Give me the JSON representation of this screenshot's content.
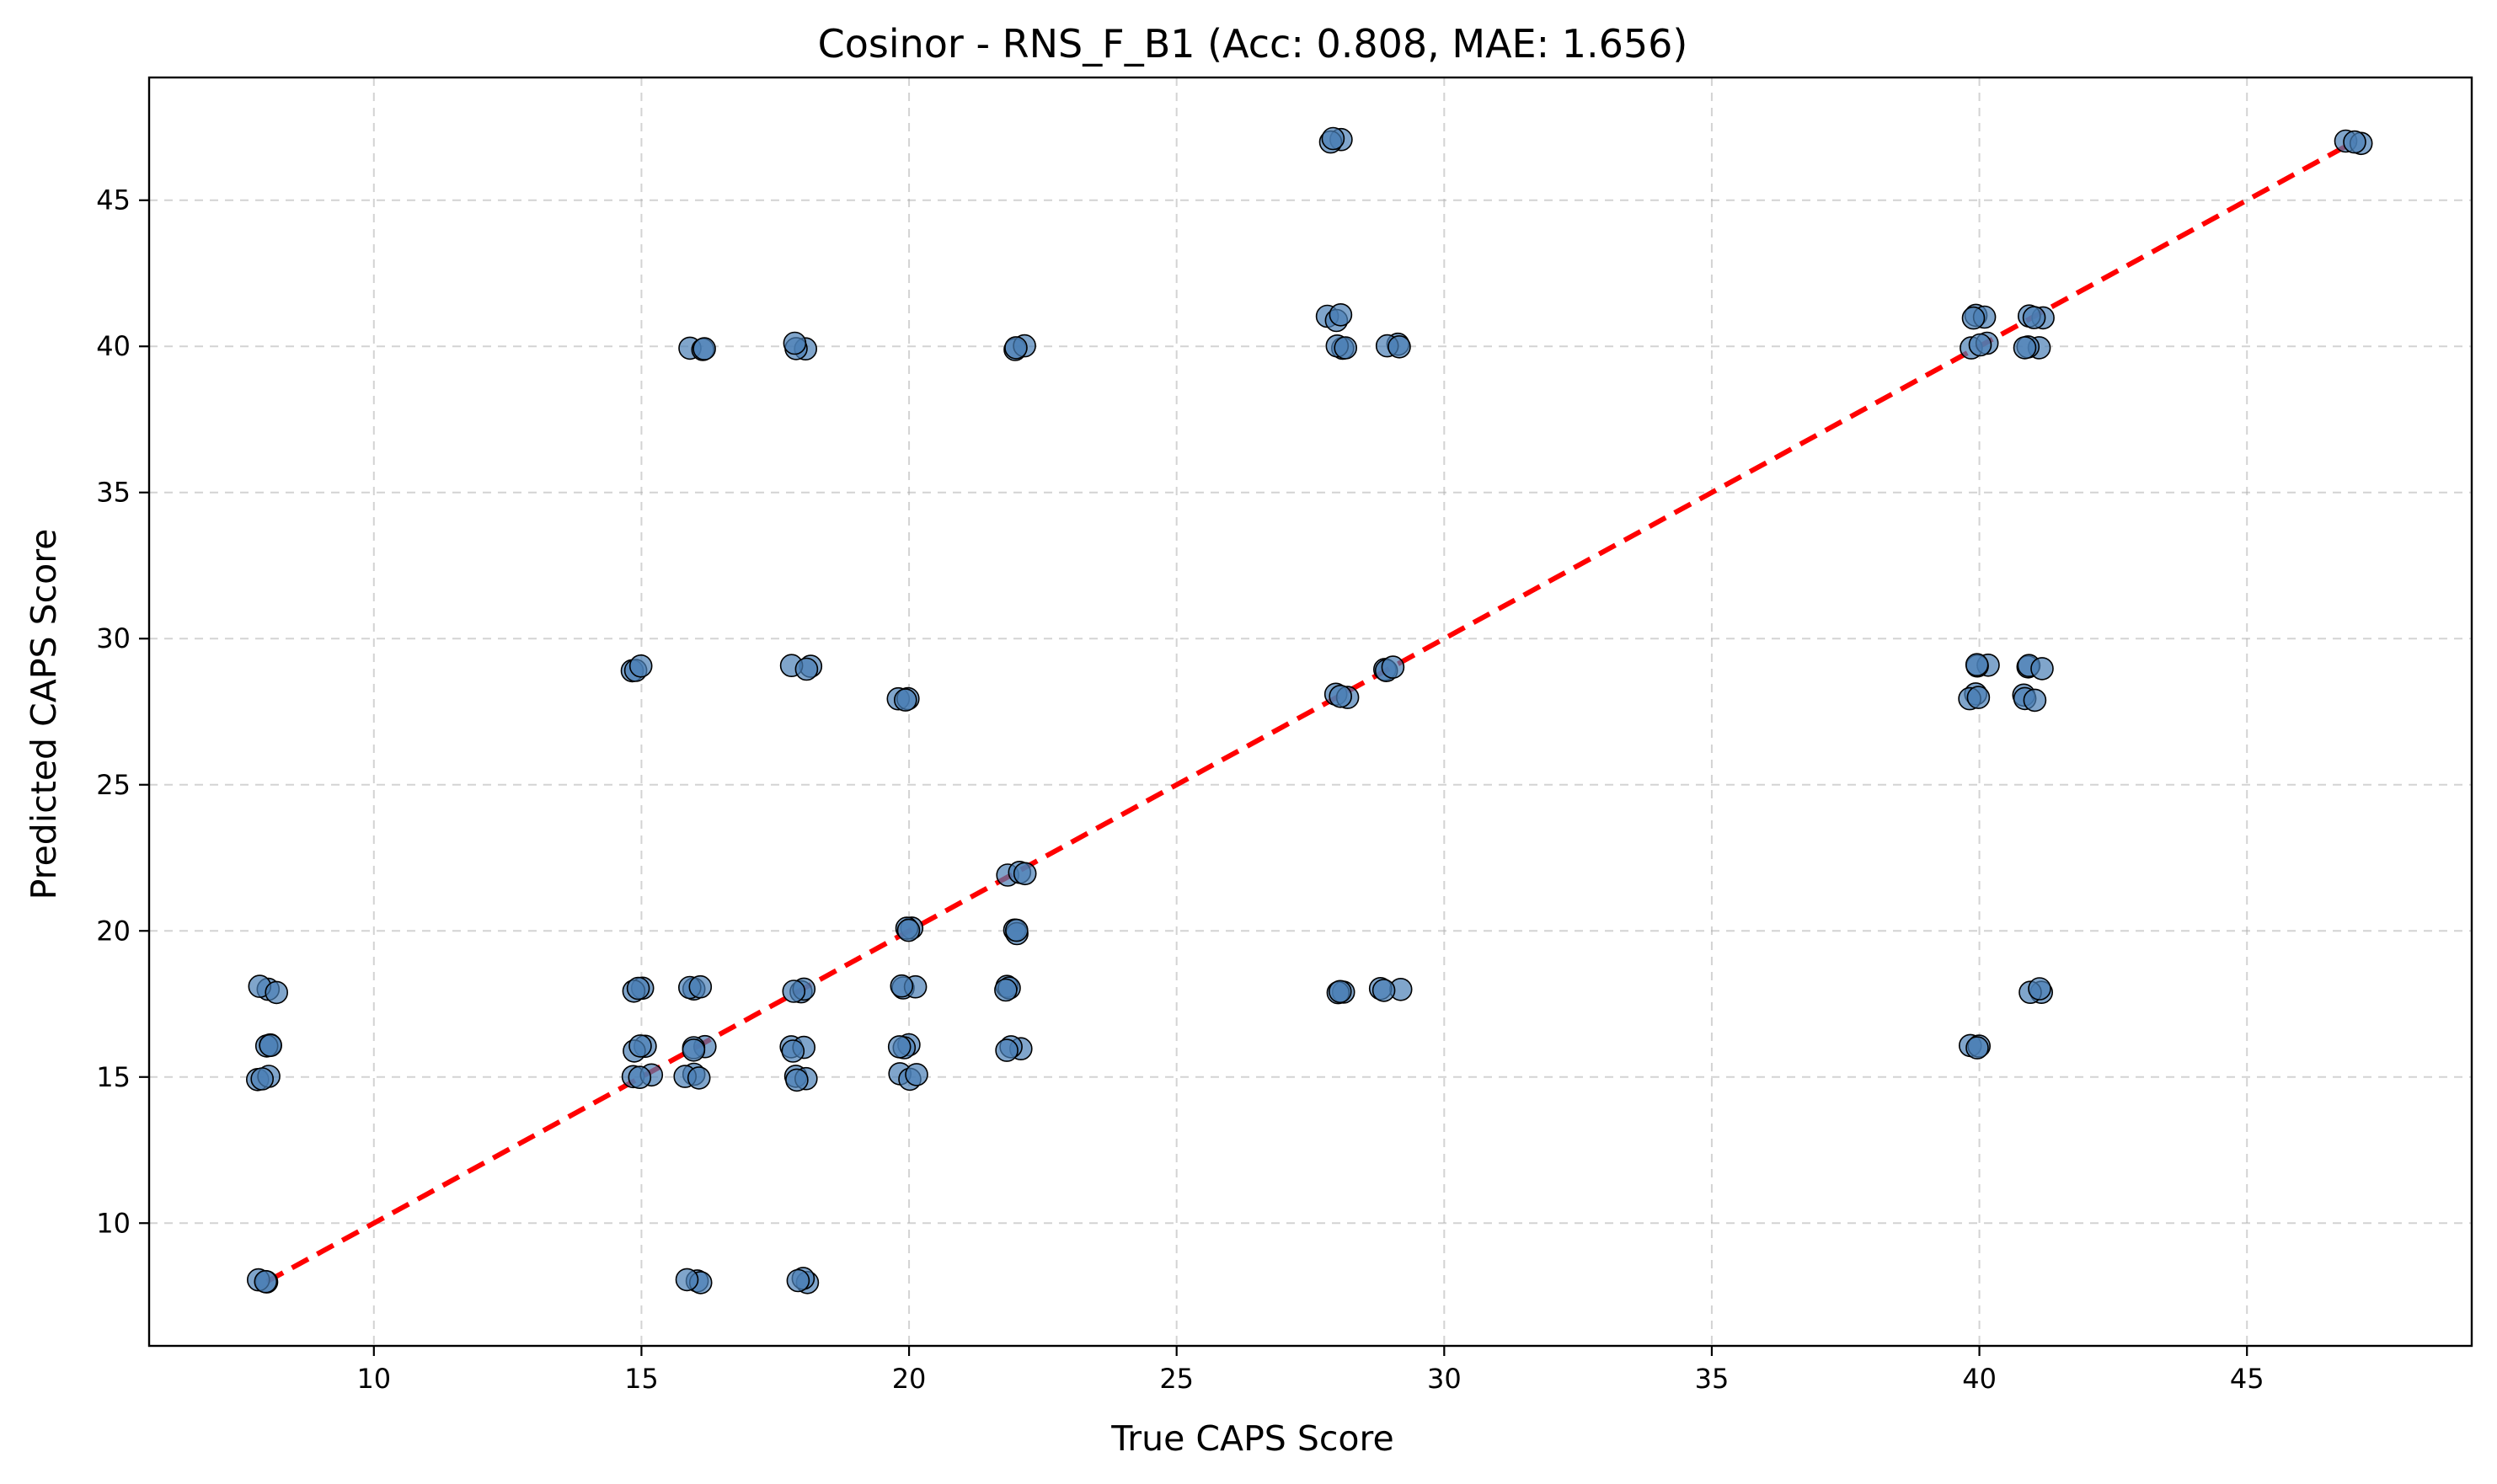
{
  "chart_data": {
    "type": "scatter",
    "title": "Cosinor - RNS_F_B1 (Acc: 0.808, MAE: 1.656)",
    "xlabel": "True CAPS Score",
    "ylabel": "Predicted CAPS Score",
    "xlim": [
      5.8,
      49.2
    ],
    "ylim": [
      5.8,
      49.2
    ],
    "xticks": [
      10,
      15,
      20,
      25,
      30,
      35,
      40,
      45
    ],
    "yticks": [
      10,
      15,
      20,
      25,
      30,
      35,
      40,
      45
    ],
    "grid": true,
    "marker_color": "#4a7fb5",
    "marker_edge_color": "#000000",
    "reference_line": {
      "x": [
        8,
        47
      ],
      "y": [
        8,
        47
      ],
      "color": "#ff0000",
      "style": "dashed"
    },
    "points": [
      {
        "x": 8,
        "y": 8
      },
      {
        "x": 8,
        "y": 15
      },
      {
        "x": 8,
        "y": 16
      },
      {
        "x": 8,
        "y": 18
      },
      {
        "x": 15,
        "y": 15
      },
      {
        "x": 15,
        "y": 16
      },
      {
        "x": 15,
        "y": 18
      },
      {
        "x": 15,
        "y": 29
      },
      {
        "x": 16,
        "y": 8
      },
      {
        "x": 16,
        "y": 15
      },
      {
        "x": 16,
        "y": 16
      },
      {
        "x": 16,
        "y": 18
      },
      {
        "x": 16,
        "y": 40
      },
      {
        "x": 18,
        "y": 8
      },
      {
        "x": 18,
        "y": 15
      },
      {
        "x": 18,
        "y": 16
      },
      {
        "x": 18,
        "y": 18
      },
      {
        "x": 18,
        "y": 29
      },
      {
        "x": 18,
        "y": 40
      },
      {
        "x": 20,
        "y": 15
      },
      {
        "x": 20,
        "y": 16
      },
      {
        "x": 20,
        "y": 18
      },
      {
        "x": 20,
        "y": 20
      },
      {
        "x": 20,
        "y": 28
      },
      {
        "x": 22,
        "y": 16
      },
      {
        "x": 22,
        "y": 18
      },
      {
        "x": 22,
        "y": 20
      },
      {
        "x": 22,
        "y": 22
      },
      {
        "x": 22,
        "y": 40
      },
      {
        "x": 28,
        "y": 18
      },
      {
        "x": 28,
        "y": 28
      },
      {
        "x": 28,
        "y": 40
      },
      {
        "x": 28,
        "y": 41
      },
      {
        "x": 28,
        "y": 47
      },
      {
        "x": 29,
        "y": 18
      },
      {
        "x": 29,
        "y": 29
      },
      {
        "x": 29,
        "y": 40
      },
      {
        "x": 40,
        "y": 16
      },
      {
        "x": 40,
        "y": 28
      },
      {
        "x": 40,
        "y": 29
      },
      {
        "x": 40,
        "y": 40
      },
      {
        "x": 40,
        "y": 41
      },
      {
        "x": 41,
        "y": 18
      },
      {
        "x": 41,
        "y": 28
      },
      {
        "x": 41,
        "y": 29
      },
      {
        "x": 41,
        "y": 40
      },
      {
        "x": 41,
        "y": 41
      },
      {
        "x": 47,
        "y": 47
      }
    ]
  }
}
